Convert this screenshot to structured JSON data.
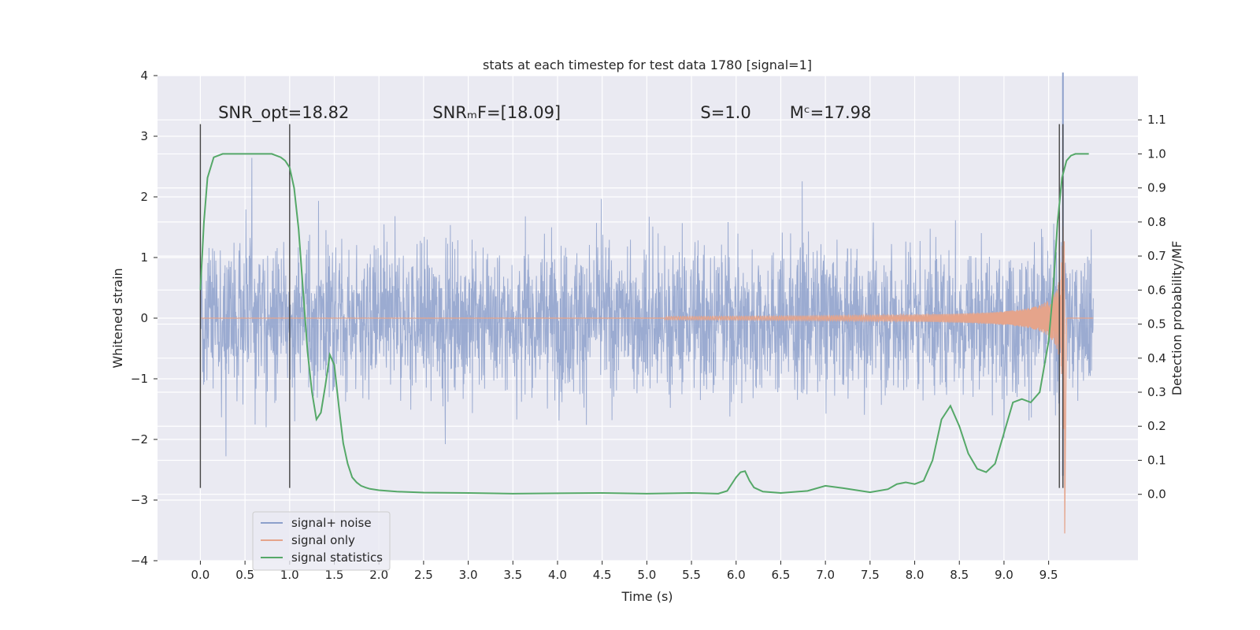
{
  "chart_data": {
    "type": "line",
    "title": "stats at each timestep for test data 1780 [signal=1]",
    "xlabel": "Time (s)",
    "ylabel": "Whitened strain",
    "ylabel_right": "Detection probability/MF",
    "xlim": [
      -0.48,
      10.5
    ],
    "ylim": [
      -4.0,
      4.0
    ],
    "ylim_right": [
      -0.195,
      1.23
    ],
    "x_ticks": [
      "0.0",
      "0.5",
      "1.0",
      "1.5",
      "2.0",
      "2.5",
      "3.0",
      "3.5",
      "4.0",
      "4.5",
      "5.0",
      "5.5",
      "6.0",
      "6.5",
      "7.0",
      "7.5",
      "8.0",
      "8.5",
      "9.0",
      "9.5"
    ],
    "y_ticks": [
      "4",
      "3",
      "2",
      "1",
      "0",
      "−1",
      "−2",
      "−3",
      "−4"
    ],
    "y_right_ticks": [
      "1.1",
      "1.0",
      "0.9",
      "0.8",
      "0.7",
      "0.6",
      "0.5",
      "0.4",
      "0.3",
      "0.2",
      "0.1",
      "0.0"
    ],
    "grid": true,
    "legend_position": "lower-left",
    "annotations": [
      {
        "id": "snr-opt",
        "text": "SNR_opt=18.82",
        "x": 0.2,
        "y": 3.3
      },
      {
        "id": "snr-mf",
        "text": "SNRₘF=[18.09]",
        "x": 2.6,
        "y": 3.3
      },
      {
        "id": "s",
        "text": "S=1.0",
        "x": 5.6,
        "y": 3.3
      },
      {
        "id": "mc",
        "text": "Mᶜ=17.98",
        "x": 6.6,
        "y": 3.3
      }
    ],
    "series": [
      {
        "id": "signal-noise",
        "name": "signal+ noise",
        "color": "#8da0cb",
        "axis": "left",
        "x_range": [
          0.0,
          10.0
        ],
        "approx_envelope": [
          -1.6,
          1.6
        ],
        "approx_extremes": [
          -3.5,
          4.05
        ]
      },
      {
        "id": "signal-only",
        "name": "signal only",
        "color": "#e5a48b",
        "axis": "left",
        "x_range": [
          0.0,
          10.0
        ],
        "chirp_peak_time": 9.68,
        "approx_peak": 3.55
      },
      {
        "id": "signal-statistics",
        "name": "signal statistics",
        "color": "#55a868",
        "axis": "right",
        "x": [
          0.0,
          0.04,
          0.08,
          0.15,
          0.25,
          0.4,
          0.6,
          0.8,
          0.9,
          0.95,
          1.0,
          1.05,
          1.1,
          1.15,
          1.2,
          1.25,
          1.3,
          1.35,
          1.4,
          1.45,
          1.5,
          1.55,
          1.6,
          1.65,
          1.7,
          1.75,
          1.8,
          1.85,
          1.9,
          2.0,
          2.2,
          2.5,
          3.0,
          3.5,
          4.0,
          4.5,
          5.0,
          5.5,
          5.8,
          5.9,
          6.0,
          6.05,
          6.1,
          6.15,
          6.2,
          6.3,
          6.5,
          6.8,
          7.0,
          7.2,
          7.5,
          7.7,
          7.8,
          7.9,
          8.0,
          8.1,
          8.2,
          8.3,
          8.4,
          8.5,
          8.6,
          8.7,
          8.8,
          8.9,
          9.0,
          9.1,
          9.2,
          9.3,
          9.4,
          9.5,
          9.55,
          9.6,
          9.65,
          9.7,
          9.75,
          9.8,
          9.85,
          9.9,
          9.95
        ],
        "values": [
          0.6,
          0.8,
          0.93,
          0.99,
          1.0,
          1.0,
          1.0,
          1.0,
          0.99,
          0.98,
          0.96,
          0.9,
          0.78,
          0.6,
          0.42,
          0.3,
          0.22,
          0.24,
          0.32,
          0.41,
          0.38,
          0.26,
          0.15,
          0.09,
          0.05,
          0.035,
          0.025,
          0.02,
          0.016,
          0.012,
          0.008,
          0.005,
          0.004,
          0.002,
          0.003,
          0.004,
          0.002,
          0.004,
          0.002,
          0.01,
          0.05,
          0.065,
          0.068,
          0.04,
          0.02,
          0.008,
          0.004,
          0.01,
          0.025,
          0.018,
          0.006,
          0.015,
          0.03,
          0.035,
          0.03,
          0.04,
          0.1,
          0.22,
          0.26,
          0.2,
          0.12,
          0.075,
          0.065,
          0.09,
          0.18,
          0.27,
          0.28,
          0.27,
          0.3,
          0.45,
          0.6,
          0.8,
          0.93,
          0.98,
          0.995,
          1.0,
          1.0,
          1.0,
          1.0
        ]
      }
    ],
    "vertical_lines": [
      {
        "id": "vline-start",
        "x": 0.0,
        "y_range": [
          -2.8,
          3.2
        ]
      },
      {
        "id": "vline-1s",
        "x": 1.0,
        "y_range": [
          -2.8,
          3.2
        ]
      },
      {
        "id": "vline-merger-a",
        "x": 9.62,
        "y_range": [
          -2.8,
          3.2
        ]
      },
      {
        "id": "vline-merger-b",
        "x": 9.66,
        "y_range": [
          -2.8,
          3.2
        ]
      }
    ]
  }
}
